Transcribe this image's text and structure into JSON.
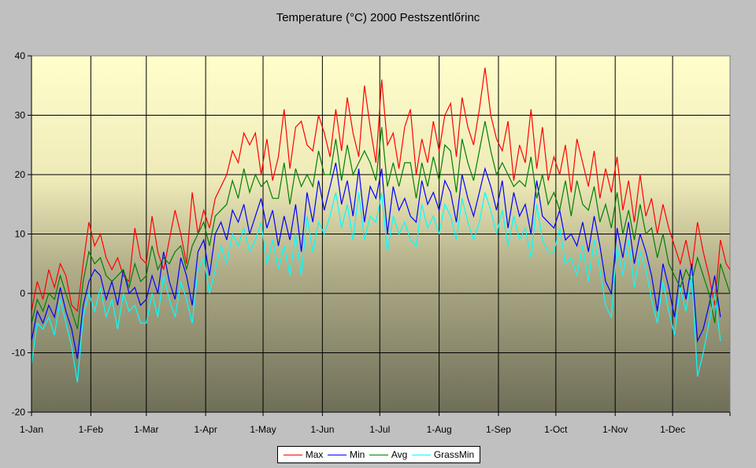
{
  "chart_data": {
    "type": "line",
    "title": "Temperature (°C) 2000 Pestszentlőrinc",
    "xlabel": "",
    "ylabel": "",
    "ylim": [
      -20,
      40
    ],
    "yticks": [
      -20,
      -10,
      0,
      10,
      20,
      30,
      40
    ],
    "xlim_days": [
      1,
      366
    ],
    "xticks": [
      {
        "label": "1-Jan",
        "day": 1
      },
      {
        "label": "1-Feb",
        "day": 32
      },
      {
        "label": "1-Mar",
        "day": 61
      },
      {
        "label": "1-Apr",
        "day": 92
      },
      {
        "label": "1-May",
        "day": 122
      },
      {
        "label": "1-Jun",
        "day": 153
      },
      {
        "label": "1-Jul",
        "day": 183
      },
      {
        "label": "1-Aug",
        "day": 214
      },
      {
        "label": "1-Sep",
        "day": 245
      },
      {
        "label": "1-Oct",
        "day": 275
      },
      {
        "label": "1-Nov",
        "day": 306
      },
      {
        "label": "1-Dec",
        "day": 336
      }
    ],
    "grid": true,
    "legend": "bottom-center",
    "x_day": [
      1,
      4,
      7,
      10,
      13,
      16,
      19,
      22,
      25,
      28,
      31,
      34,
      37,
      40,
      43,
      46,
      49,
      52,
      55,
      58,
      61,
      64,
      67,
      70,
      73,
      76,
      79,
      82,
      85,
      88,
      91,
      94,
      97,
      100,
      103,
      106,
      109,
      112,
      115,
      118,
      121,
      124,
      127,
      130,
      133,
      136,
      139,
      142,
      145,
      148,
      151,
      154,
      157,
      160,
      163,
      166,
      169,
      172,
      175,
      178,
      181,
      184,
      187,
      190,
      193,
      196,
      199,
      202,
      205,
      208,
      211,
      214,
      217,
      220,
      223,
      226,
      229,
      232,
      235,
      238,
      241,
      244,
      247,
      250,
      253,
      256,
      259,
      262,
      265,
      268,
      271,
      274,
      277,
      280,
      283,
      286,
      289,
      292,
      295,
      298,
      301,
      304,
      307,
      310,
      313,
      316,
      319,
      322,
      325,
      328,
      331,
      334,
      337,
      340,
      343,
      346,
      349,
      352,
      355,
      358,
      361,
      364,
      366
    ],
    "series": [
      {
        "name": "Max",
        "color": "#ff0000",
        "values": [
          -3,
          2,
          -1,
          4,
          1,
          5,
          3,
          -2,
          -3,
          5,
          12,
          8,
          10,
          6,
          4,
          6,
          3,
          2,
          11,
          6,
          5,
          13,
          7,
          4,
          9,
          14,
          10,
          5,
          17,
          10,
          14,
          11,
          16,
          18,
          20,
          24,
          22,
          27,
          25,
          27,
          20,
          26,
          19,
          23,
          31,
          21,
          28,
          29,
          25,
          24,
          30,
          27,
          23,
          31,
          24,
          33,
          27,
          23,
          35,
          28,
          22,
          36,
          25,
          27,
          21,
          28,
          31,
          20,
          26,
          22,
          29,
          24,
          30,
          32,
          23,
          33,
          28,
          25,
          31,
          38,
          30,
          26,
          24,
          29,
          19,
          25,
          22,
          31,
          21,
          28,
          19,
          23,
          20,
          25,
          17,
          26,
          22,
          18,
          24,
          16,
          21,
          17,
          23,
          14,
          19,
          12,
          20,
          13,
          16,
          10,
          15,
          11,
          8,
          5,
          9,
          4,
          12,
          7,
          3,
          -2,
          9,
          5,
          4
        ]
      },
      {
        "name": "Min",
        "color": "#0000ff",
        "values": [
          -8,
          -3,
          -5,
          -2,
          -4,
          1,
          -3,
          -6,
          -11,
          -2,
          2,
          4,
          3,
          -1,
          2,
          -2,
          4,
          0,
          1,
          -2,
          -1,
          3,
          0,
          7,
          2,
          -1,
          6,
          3,
          -2,
          7,
          9,
          3,
          10,
          12,
          9,
          14,
          12,
          15,
          10,
          13,
          16,
          11,
          14,
          8,
          13,
          9,
          15,
          7,
          17,
          12,
          19,
          14,
          18,
          22,
          15,
          19,
          13,
          21,
          12,
          18,
          16,
          21,
          10,
          18,
          14,
          16,
          13,
          12,
          19,
          15,
          17,
          14,
          19,
          17,
          12,
          20,
          16,
          13,
          17,
          21,
          18,
          14,
          19,
          11,
          17,
          13,
          15,
          10,
          19,
          13,
          12,
          11,
          14,
          9,
          10,
          8,
          12,
          7,
          13,
          8,
          2,
          0,
          11,
          6,
          12,
          5,
          10,
          7,
          3,
          -3,
          5,
          1,
          -4,
          4,
          -1,
          5,
          -8,
          -6,
          -2,
          3,
          -4
        ]
      },
      {
        "name": "Avg",
        "color": "#008000",
        "values": [
          -5,
          -1,
          -3,
          0,
          -1,
          3,
          0,
          -3,
          -6,
          2,
          7,
          5,
          6,
          3,
          2,
          3,
          4,
          1,
          5,
          2,
          3,
          8,
          4,
          6,
          5,
          7,
          8,
          4,
          8,
          10,
          12,
          8,
          13,
          14,
          15,
          19,
          16,
          21,
          17,
          20,
          18,
          19,
          16,
          16,
          22,
          15,
          21,
          18,
          20,
          18,
          24,
          20,
          20,
          26,
          19,
          25,
          20,
          22,
          24,
          22,
          19,
          28,
          18,
          22,
          18,
          22,
          22,
          16,
          22,
          18,
          23,
          19,
          25,
          24,
          17,
          26,
          22,
          19,
          24,
          29,
          24,
          20,
          22,
          20,
          18,
          19,
          18,
          23,
          16,
          20,
          15,
          17,
          14,
          19,
          13,
          19,
          15,
          14,
          18,
          12,
          15,
          11,
          17,
          10,
          14,
          9,
          15,
          10,
          11,
          6,
          10,
          5,
          3,
          1,
          4,
          2,
          6,
          3,
          0,
          -5,
          5,
          2,
          0
        ]
      },
      {
        "name": "GrassMin",
        "color": "#00ffff",
        "values": [
          -12,
          -5,
          -6,
          -4,
          -7,
          -1,
          -5,
          -9,
          -15,
          -4,
          0,
          -3,
          1,
          -4,
          -1,
          -6,
          0,
          -3,
          -2,
          -5,
          -5,
          0,
          -4,
          3,
          -1,
          -4,
          2,
          -1,
          -5,
          4,
          6,
          0,
          4,
          8,
          5,
          10,
          8,
          11,
          7,
          9,
          12,
          5,
          9,
          4,
          8,
          3,
          10,
          3,
          13,
          7,
          12,
          10,
          13,
          17,
          11,
          15,
          9,
          17,
          9,
          13,
          12,
          17,
          7,
          13,
          10,
          12,
          9,
          8,
          15,
          11,
          13,
          10,
          15,
          13,
          9,
          16,
          12,
          9,
          12,
          17,
          14,
          10,
          14,
          8,
          13,
          9,
          11,
          6,
          15,
          9,
          7,
          7,
          11,
          5,
          6,
          3,
          8,
          2,
          9,
          4,
          -2,
          -4,
          8,
          3,
          9,
          1,
          7,
          4,
          -1,
          -5,
          2,
          -3,
          -7,
          1,
          -3,
          3,
          -14,
          -10,
          -5,
          0,
          -8
        ]
      }
    ]
  }
}
